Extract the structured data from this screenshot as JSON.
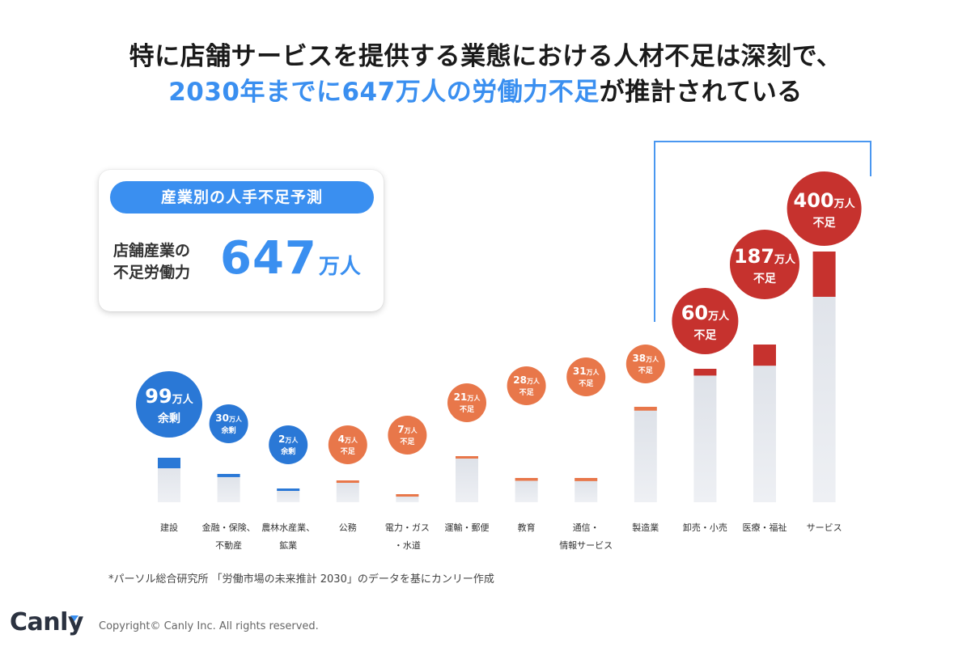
{
  "header": {
    "line1": "特に店舗サービスを提供する業態における人材不足は深刻で、",
    "line2_highlight": "2030年までに647万人の労働力不足",
    "line2_rest": "が推計されている"
  },
  "summary_card": {
    "pill_label": "産業別の人手不足予測",
    "label_line1": "店舗産業の",
    "label_line2": "不足労働力",
    "value": "647",
    "unit": "万人"
  },
  "chart_data": {
    "type": "bar",
    "title": "産業別の人手不足予測",
    "unit": "万人",
    "categories": [
      [
        "建設"
      ],
      [
        "金融・保険、",
        "不動産"
      ],
      [
        "農林水産業、",
        "鉱業"
      ],
      [
        "公務"
      ],
      [
        "電力・ガス",
        "・水道"
      ],
      [
        "運輸・郵便"
      ],
      [
        "教育"
      ],
      [
        "通信・",
        "情報サービス"
      ],
      [
        "製造業"
      ],
      [
        "卸売・小売"
      ],
      [
        "医療・福祉"
      ],
      [
        "サービス"
      ]
    ],
    "values": [
      -99,
      -30,
      -2,
      4,
      7,
      21,
      28,
      31,
      38,
      60,
      187,
      400
    ],
    "status_labels": [
      "余剰",
      "余剰",
      "余剰",
      "不足",
      "不足",
      "不足",
      "不足",
      "不足",
      "不足",
      "不足",
      "不足",
      "不足"
    ],
    "bar_totals_relative": [
      0.055,
      0.035,
      0.017,
      0.027,
      0.01,
      0.057,
      0.03,
      0.03,
      0.118,
      0.165,
      0.195,
      0.31
    ],
    "highlight_group": [
      "卸売・小売",
      "医療・福祉",
      "サービス"
    ],
    "colors": {
      "surplus": "#2a78d6",
      "shortage_small": "#e8774a",
      "shortage_large": "#c6322e",
      "base_bar": "#e3e6ec"
    },
    "legend": "none"
  },
  "footer": {
    "source_note": "*パーソル総合研究所 「労働市場の未来推計 2030」のデータを基にカンリー作成",
    "logo_text": "Canl",
    "logo_last": "y",
    "copyright": "Copyright© Canly Inc. All rights reserved."
  }
}
